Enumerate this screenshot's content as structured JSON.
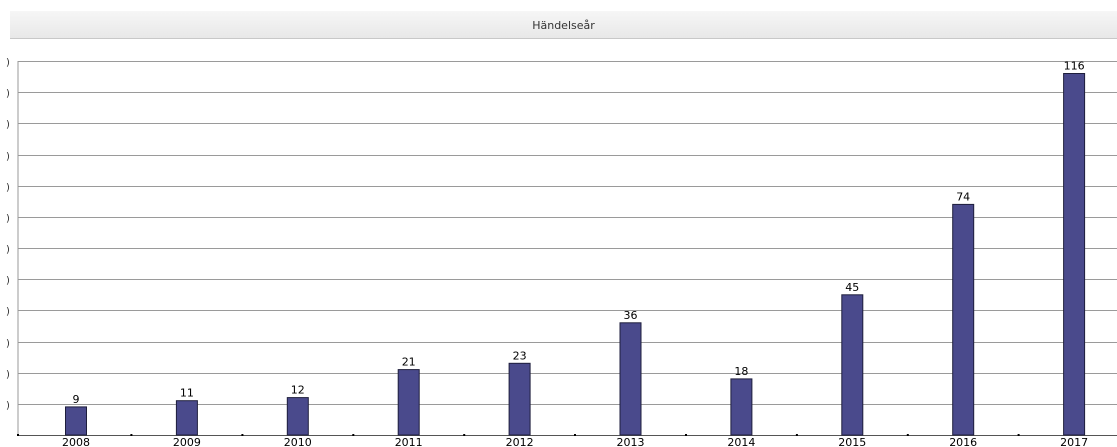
{
  "header": {
    "title": "Händelseår"
  },
  "colors": {
    "bar_fill": "#4a4a8c",
    "bar_stroke": "#1e1e3c",
    "grid": "#9a9a9a",
    "header_bg": "#eeeeee"
  },
  "chart_data": {
    "type": "bar",
    "categories": [
      "2008",
      "2009",
      "2010",
      "2011",
      "2012",
      "2013",
      "2014",
      "2015",
      "2016",
      "2017"
    ],
    "values": [
      9,
      11,
      12,
      21,
      23,
      36,
      18,
      45,
      74,
      116
    ],
    "ylim": [
      0,
      120
    ],
    "grid": true,
    "gridline_count": 12,
    "data_labels": true
  }
}
